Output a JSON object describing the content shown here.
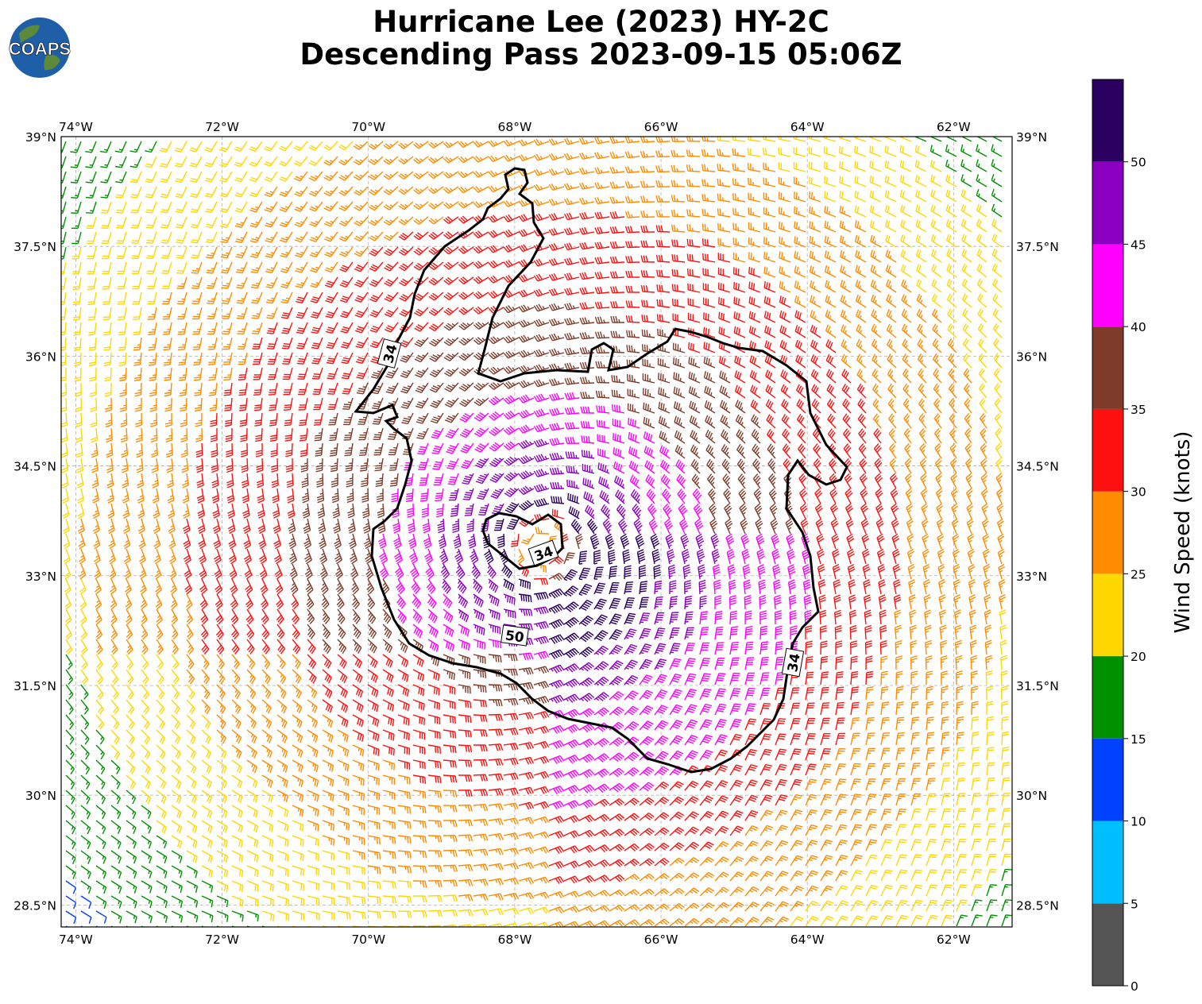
{
  "header": {
    "title_line1": "Hurricane Lee (2023) HY-2C",
    "title_line2": "Descending Pass 2023-09-15 05:06Z",
    "logo_text": "COAPS"
  },
  "chart_data": {
    "type": "wind-barb-map",
    "title": "Hurricane Lee (2023) HY-2C Descending Pass 2023-09-15 05:06Z",
    "xlim": [
      -74.2,
      -61.2
    ],
    "ylim": [
      28.2,
      39.0
    ],
    "x_ticks": [
      "74°W",
      "72°W",
      "70°W",
      "68°W",
      "66°W",
      "64°W",
      "62°W"
    ],
    "x_tick_values": [
      -74,
      -72,
      -70,
      -68,
      -66,
      -64,
      -62
    ],
    "y_ticks": [
      "39°N",
      "37.5°N",
      "36°N",
      "34.5°N",
      "33°N",
      "31.5°N",
      "30°N",
      "28.5°N"
    ],
    "y_tick_values": [
      39,
      37.5,
      36,
      34.5,
      33,
      31.5,
      30,
      28.5
    ],
    "grid": true,
    "storm_center": {
      "lon": -67.6,
      "lat": 33.4
    },
    "contours": [
      {
        "label": "34",
        "level": 34
      },
      {
        "label": "50",
        "level": 50
      }
    ],
    "colorbar": {
      "label": "Wind Speed (knots)",
      "bounds": [
        0,
        5,
        10,
        15,
        20,
        25,
        30,
        35,
        40,
        45,
        50,
        55
      ],
      "tick_labels": [
        "0",
        "5",
        "10",
        "15",
        "20",
        "25",
        "30",
        "35",
        "40",
        "45",
        "50"
      ],
      "colors": [
        "#555555",
        "#00bfff",
        "#0040ff",
        "#009000",
        "#ffd700",
        "#ff8c00",
        "#ff1010",
        "#7f3b2a",
        "#ff00ff",
        "#8b00c0",
        "#2a0060"
      ]
    }
  }
}
